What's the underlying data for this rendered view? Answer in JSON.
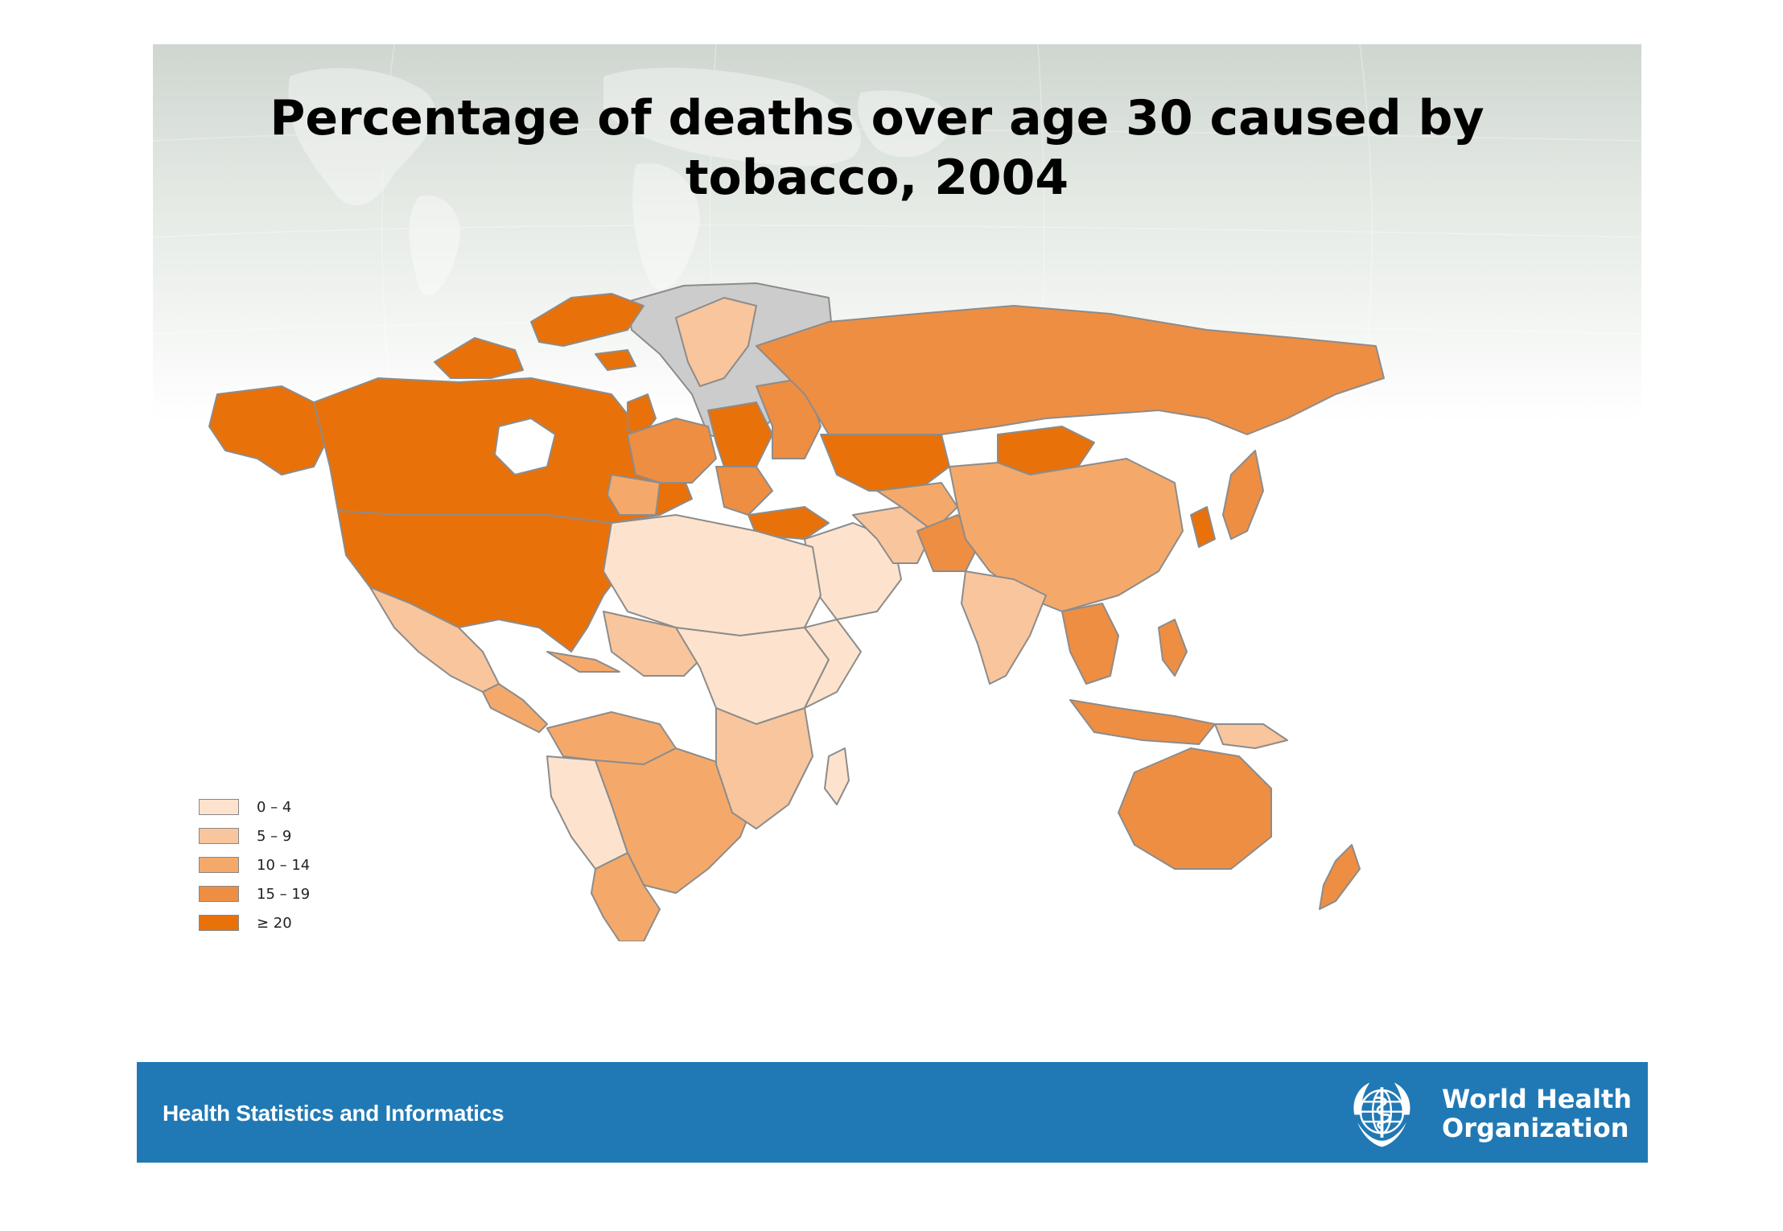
{
  "slide": {
    "title_line1": "Percentage of deaths over age 30 caused by",
    "title_line2": "tobacco, 2004"
  },
  "legend": {
    "items": [
      {
        "label": "0 – 4",
        "color": "#fde3cd"
      },
      {
        "label": "5 – 9",
        "color": "#f9c59c"
      },
      {
        "label": "10 – 14",
        "color": "#f4a96a"
      },
      {
        "label": "15 – 19",
        "color": "#ee8e43"
      },
      {
        "label": "≥ 20",
        "color": "#e8710a"
      }
    ],
    "no_data_color": "#cccccc"
  },
  "footer": {
    "left_text": "Health Statistics and Informatics",
    "org_line1": "World Health",
    "org_line2": "Organization",
    "bar_color": "#2079b4"
  }
}
